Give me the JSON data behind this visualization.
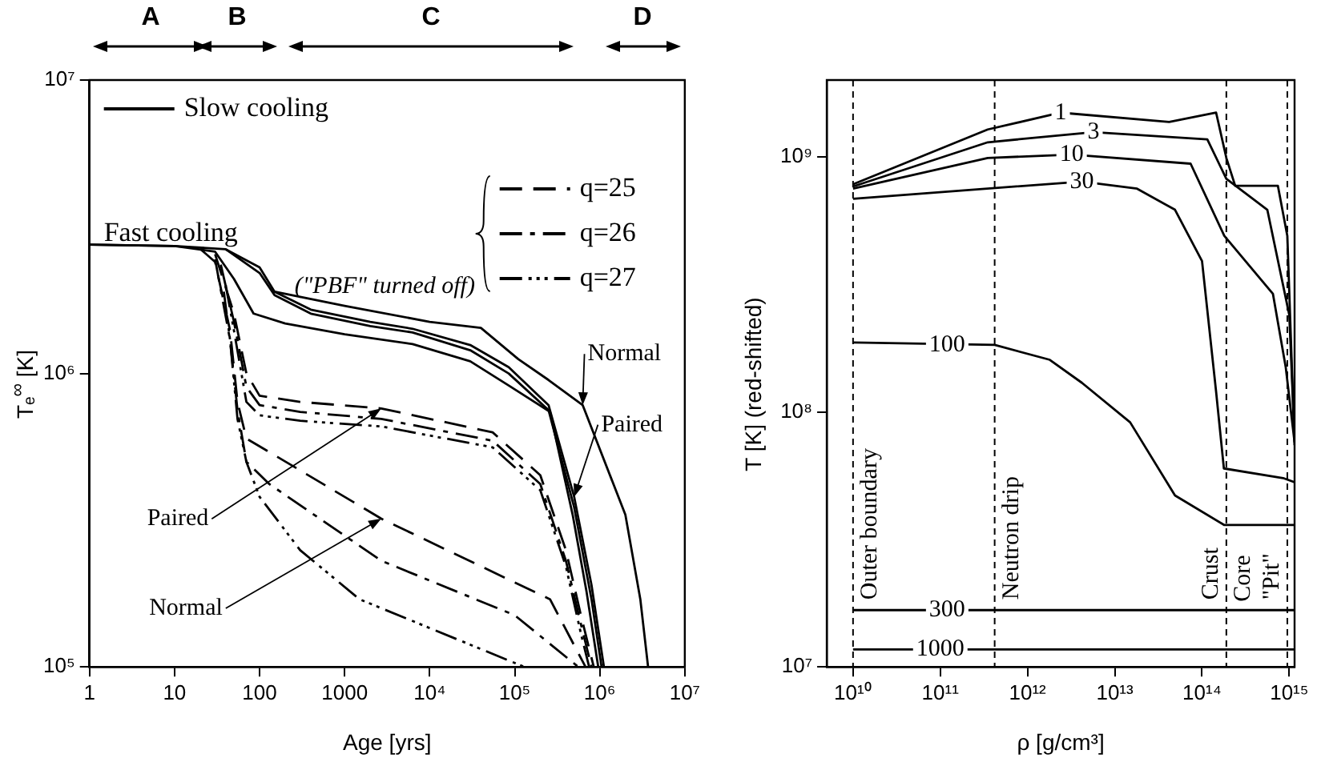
{
  "chart_data": [
    {
      "type": "line",
      "xlabel": "Age [yrs]",
      "ylabel": "Tₑ$^{∞}$ [K]",
      "log": "xy",
      "xlim": [
        1,
        10000000
      ],
      "ylim": [
        100000,
        10000000
      ],
      "xticks": [
        1,
        10,
        100,
        1000,
        {
          "value": 10000,
          "label": "10⁴"
        },
        {
          "value": 100000,
          "label": "10⁵"
        },
        {
          "value": 1000000,
          "label": "10⁶"
        },
        {
          "value": 10000000,
          "label": "10⁷"
        }
      ],
      "yticks": [
        {
          "value": 100000,
          "label": "10⁵"
        },
        {
          "value": 1000000,
          "label": "10⁶"
        },
        {
          "value": 10000000,
          "label": "10⁷"
        }
      ],
      "grid": false,
      "legend": "top",
      "legend_title": "Fast cooling",
      "marker": "none",
      "annotations": [
        "A",
        "B",
        "C",
        "D",
        {
          "text": "(\"PBF\" turned off)",
          "x": 10000,
          "y": 1500000
        },
        {
          "text": "Normal",
          "x": 630000,
          "y": 780000
        },
        {
          "text": "Paired",
          "x": 500000,
          "y": 380000
        },
        {
          "text": "Paired",
          "x": 2700,
          "y": 760000
        },
        {
          "text": "Normal",
          "x": 2700,
          "y": 320000
        }
      ],
      "series": [
        {
          "name": "Slow cooling",
          "color": "#000000",
          "line_style": "solid",
          "x": [
            1,
            10,
            30,
            50,
            85,
            200,
            1000,
            6300,
            30000,
            85000,
            260000,
            480000,
            700000,
            960000
          ],
          "values": [
            2750000,
            2720000,
            2600000,
            2100000,
            1600000,
            1480000,
            1360000,
            1260000,
            1100000,
            910000,
            740000,
            330000,
            180000,
            100000
          ]
        },
        {
          "color": "#000000",
          "line_style": "solid",
          "x": [
            40,
            100,
            150,
            400,
            2000,
            6300,
            30000,
            85000,
            250000,
            500000,
            800000,
            1050000
          ],
          "values": [
            2650000,
            2200000,
            1850000,
            1600000,
            1450000,
            1380000,
            1200000,
            1000000,
            750000,
            350000,
            170000,
            100000
          ]
        },
        {
          "color": "#000000",
          "line_style": "solid",
          "x": [
            150,
            400,
            2000,
            6300,
            30000,
            85000,
            250000,
            500000,
            800000,
            1120000
          ],
          "values": [
            1900000,
            1650000,
            1500000,
            1420000,
            1250000,
            1050000,
            780000,
            380000,
            190000,
            100000
          ]
        },
        {
          "color": "#000000",
          "line_style": "solid",
          "x": [
            1,
            10,
            40,
            100,
            150,
            1000,
            10000,
            40000,
            110000,
            250000,
            630000,
            2000000,
            3000000,
            3700000
          ],
          "values": [
            2750000,
            2720000,
            2650000,
            2300000,
            1900000,
            1700000,
            1500000,
            1430000,
            1120000,
            950000,
            780000,
            330000,
            170000,
            100000
          ]
        },
        {
          "name": "q=25",
          "color": "#000000",
          "line_style": "dashed",
          "x": [
            30,
            50,
            70,
            100,
            300,
            2700,
            55000,
            200000,
            400000,
            600000,
            850000
          ],
          "values": [
            2550000,
            1600000,
            1000000,
            840000,
            800000,
            760000,
            630000,
            450000,
            250000,
            150000,
            100000
          ]
        },
        {
          "name": "q=26",
          "color": "#000000",
          "line_style": "dashdot",
          "x": [
            35,
            50,
            70,
            100,
            300,
            2700,
            55000,
            200000,
            400000,
            600000,
            800000
          ],
          "values": [
            2350000,
            1500000,
            900000,
            780000,
            740000,
            700000,
            590000,
            420000,
            230000,
            140000,
            100000
          ]
        },
        {
          "name": "q=27",
          "color": "#000000",
          "line_style": "dashdotdot",
          "x": [
            40,
            50,
            70,
            100,
            300,
            2700,
            55000,
            200000,
            400000,
            600000,
            750000
          ],
          "values": [
            2000000,
            1400000,
            800000,
            720000,
            690000,
            660000,
            560000,
            400000,
            220000,
            130000,
            100000
          ]
        },
        {
          "color": "#000000",
          "line_style": "dashed",
          "x": [
            20,
            30,
            45,
            55,
            70,
            130,
            2700,
            260000,
            680000
          ],
          "values": [
            2660000,
            2400000,
            1400000,
            800000,
            600000,
            540000,
            320000,
            170000,
            100000
          ]
        },
        {
          "color": "#000000",
          "line_style": "dashdot",
          "x": [
            30,
            45,
            55,
            70,
            130,
            2700,
            100000,
            560000
          ],
          "values": [
            2450000,
            1300000,
            750000,
            500000,
            420000,
            230000,
            150000,
            100000
          ]
        },
        {
          "color": "#000000",
          "line_style": "dashdotdot",
          "x": [
            38,
            45,
            55,
            70,
            100,
            300,
            1500,
            130000
          ],
          "values": [
            1900000,
            1300000,
            700000,
            500000,
            380000,
            250000,
            170000,
            100000
          ]
        }
      ]
    },
    {
      "type": "line",
      "xlabel": "ρ [g/cm³]",
      "ylabel": "T [K]   (red-shifted)",
      "log": "xy",
      "xlim": [
        5000000000,
        1150000000000000
      ],
      "ylim": [
        10000000,
        2000000000
      ],
      "xticks": [
        {
          "value": 10000000000,
          "label": "10¹⁰"
        },
        {
          "value": 100000000000,
          "label": "10¹¹"
        },
        {
          "value": 1000000000000,
          "label": "10¹²"
        },
        {
          "value": 10000000000000,
          "label": "10¹³"
        },
        {
          "value": 100000000000000,
          "label": "10¹⁴"
        },
        {
          "value": 1000000000000000,
          "label": "10¹⁵"
        }
      ],
      "yticks": [
        {
          "value": 10000000,
          "label": "10⁷"
        },
        {
          "value": 100000000,
          "label": "10⁸"
        },
        {
          "value": 1000000000,
          "label": "10⁹"
        }
      ],
      "grid": false,
      "legend": false,
      "marker": "none",
      "ref_lines": [
        {
          "axis": "x",
          "value": 10000000000,
          "label": "Outer boundary",
          "line_style": "dashed"
        },
        {
          "axis": "x",
          "value": 420000000000,
          "label": "Neutron drip",
          "line_style": "dashed"
        },
        {
          "axis": "x",
          "value": 190000000000000,
          "label": "Crust",
          "line_style": "dashed"
        },
        {
          "axis": "x",
          "value": 950000000000000,
          "label": "\"Pit\"",
          "line_style": "dashed"
        }
      ],
      "annotations": [
        {
          "text": "Core",
          "x": 190000000000000,
          "y": 18000000
        },
        {
          "text": "1",
          "x": 2400000000000,
          "y": 1490000000
        },
        {
          "text": "3",
          "x": 5700000000000,
          "y": 1250000000
        },
        {
          "text": "10",
          "x": 3200000000000,
          "y": 1020000000
        },
        {
          "text": "30",
          "x": 4200000000000,
          "y": 800000000
        },
        {
          "text": "100",
          "x": 120000000000,
          "y": 183000000
        },
        {
          "text": "300",
          "x": 120000000000,
          "y": 16700000
        },
        {
          "text": "1000",
          "x": 100000000000,
          "y": 11700000
        }
      ],
      "series": [
        {
          "color": "#000000",
          "line_style": "solid",
          "x": [
            10000000000,
            350000000000,
            2400000000000,
            42000000000000,
            145000000000000,
            190000000000000,
            240000000000000,
            740000000000000,
            950000000000000,
            1150000000000000
          ],
          "values": [
            780000000,
            1280000000,
            1490000000,
            1370000000,
            1490000000,
            990000000,
            770000000,
            770000000,
            490000000,
            74000000
          ]
        },
        {
          "color": "#000000",
          "line_style": "solid",
          "x": [
            10000000000,
            350000000000,
            5700000000000,
            115000000000000,
            190000000000000,
            560000000000000,
            1000000000000000,
            1150000000000000
          ],
          "values": [
            765000000,
            1140000000,
            1250000000,
            1170000000,
            820000000,
            620000000,
            240000000,
            78000000
          ]
        },
        {
          "color": "#000000",
          "line_style": "solid",
          "x": [
            10000000000,
            350000000000,
            3200000000000,
            74000000000000,
            180000000000000,
            650000000000000,
            910000000000000,
            1150000000000000
          ],
          "values": [
            750000000,
            990000000,
            1020000000,
            940000000,
            490000000,
            290000000,
            150000000,
            76000000
          ]
        },
        {
          "color": "#000000",
          "line_style": "solid",
          "x": [
            10000000000,
            4200000000000,
            18000000000000,
            49000000000000,
            100000000000000,
            145000000000000,
            178000000000000,
            850000000000000,
            1150000000000000
          ],
          "values": [
            685000000,
            800000000,
            750000000,
            620000000,
            390000000,
            120000000,
            60000000,
            55000000,
            53000000
          ]
        },
        {
          "color": "#000000",
          "line_style": "solid",
          "x": [
            10000000000,
            420000000000,
            1800000000000,
            4200000000000,
            15000000000000,
            49000000000000,
            180000000000000,
            1150000000000000
          ],
          "values": [
            187000000,
            183000000,
            160000000,
            130000000,
            91000000,
            47000000,
            36000000,
            36000000
          ]
        },
        {
          "color": "#000000",
          "line_style": "solid",
          "x": [
            10000000000,
            1150000000000000
          ],
          "values": [
            16700000,
            16700000
          ]
        },
        {
          "color": "#000000",
          "line_style": "solid",
          "x": [
            10000000000,
            1150000000000000
          ],
          "values": [
            11700000,
            11700000
          ]
        }
      ]
    }
  ]
}
